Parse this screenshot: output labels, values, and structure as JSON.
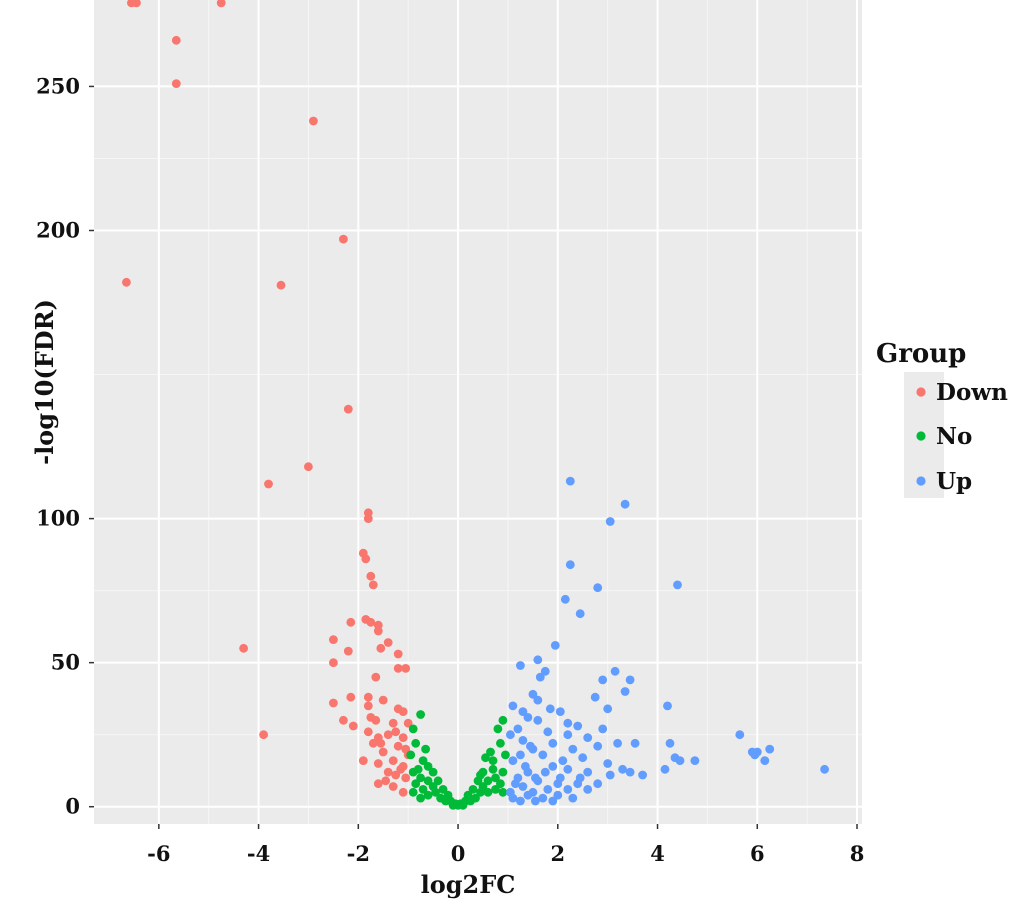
{
  "chart_data": {
    "type": "scatter",
    "title": "",
    "xlabel": "log2FC",
    "ylabel": "-log10(FDR)",
    "xlim": [
      -7.3,
      8.1
    ],
    "ylim": [
      -6,
      280
    ],
    "x_ticks": [
      -6,
      -4,
      -2,
      0,
      2,
      4,
      6,
      8
    ],
    "y_ticks": [
      0,
      50,
      100,
      200,
      250
    ],
    "grid": true,
    "legend": {
      "title": "Group",
      "placement": "right"
    },
    "series": [
      {
        "name": "Down",
        "color": "#F8766D",
        "points": [
          [
            -6.55,
            279
          ],
          [
            -6.45,
            279
          ],
          [
            -4.75,
            279
          ],
          [
            -5.65,
            266
          ],
          [
            -5.65,
            251
          ],
          [
            -2.9,
            238
          ],
          [
            -2.3,
            197
          ],
          [
            -6.65,
            182
          ],
          [
            -3.55,
            181
          ],
          [
            -2.2,
            138
          ],
          [
            -3,
            118
          ],
          [
            -3.8,
            112
          ],
          [
            -1.8,
            102
          ],
          [
            -1.8,
            100
          ],
          [
            -1.9,
            88
          ],
          [
            -1.85,
            86
          ],
          [
            -1.75,
            80
          ],
          [
            -1.7,
            77
          ],
          [
            -1.85,
            65
          ],
          [
            -1.75,
            64
          ],
          [
            -2.15,
            64
          ],
          [
            -1.6,
            63
          ],
          [
            -1.6,
            61
          ],
          [
            -2.5,
            58
          ],
          [
            -1.4,
            57
          ],
          [
            -2.2,
            54
          ],
          [
            -1.55,
            55
          ],
          [
            -4.3,
            55
          ],
          [
            -1.2,
            53
          ],
          [
            -2.5,
            50
          ],
          [
            -1.2,
            48
          ],
          [
            -1.05,
            48
          ],
          [
            -1.65,
            45
          ],
          [
            -2.15,
            38
          ],
          [
            -1.8,
            38
          ],
          [
            -1.5,
            37
          ],
          [
            -2.5,
            36
          ],
          [
            -1.8,
            35
          ],
          [
            -1.2,
            34
          ],
          [
            -1.1,
            33
          ],
          [
            -1.75,
            31
          ],
          [
            -1.65,
            30
          ],
          [
            -2.3,
            30
          ],
          [
            -2.1,
            28
          ],
          [
            -1.3,
            29
          ],
          [
            -1.0,
            29
          ],
          [
            -1.8,
            26
          ],
          [
            -1.6,
            24
          ],
          [
            -1.4,
            25
          ],
          [
            -1.1,
            24
          ],
          [
            -3.9,
            25
          ],
          [
            -1.7,
            22
          ],
          [
            -1.2,
            21
          ],
          [
            -1.5,
            19
          ],
          [
            -1.0,
            18
          ],
          [
            -1.9,
            16
          ],
          [
            -1.3,
            16
          ],
          [
            -1.6,
            15
          ],
          [
            -1.1,
            14
          ],
          [
            -1.4,
            12
          ],
          [
            -1.25,
            11
          ],
          [
            -1.05,
            10
          ],
          [
            -1.6,
            8
          ],
          [
            -1.3,
            7
          ],
          [
            -1.1,
            5
          ],
          [
            -1.55,
            22
          ],
          [
            -1.25,
            26
          ],
          [
            -1.05,
            20
          ],
          [
            -1.45,
            9
          ],
          [
            -1.15,
            13
          ]
        ]
      },
      {
        "name": "No",
        "color": "#00BA38",
        "points": [
          [
            -0.75,
            32
          ],
          [
            -0.9,
            27
          ],
          [
            -0.85,
            22
          ],
          [
            -0.95,
            18
          ],
          [
            -0.7,
            16
          ],
          [
            -0.8,
            13
          ],
          [
            -0.6,
            14
          ],
          [
            -0.9,
            12
          ],
          [
            -0.5,
            12
          ],
          [
            -0.75,
            10
          ],
          [
            -0.6,
            9
          ],
          [
            -0.85,
            8
          ],
          [
            -0.4,
            9
          ],
          [
            -0.5,
            7
          ],
          [
            -0.7,
            6
          ],
          [
            -0.3,
            6
          ],
          [
            -0.9,
            5
          ],
          [
            -0.45,
            5
          ],
          [
            -0.6,
            4
          ],
          [
            -0.2,
            4
          ],
          [
            -0.35,
            3
          ],
          [
            -0.75,
            3
          ],
          [
            -0.15,
            2
          ],
          [
            -0.25,
            2
          ],
          [
            -0.05,
            1
          ],
          [
            0.0,
            0.5
          ],
          [
            0.05,
            1
          ],
          [
            0.15,
            2
          ],
          [
            0.25,
            2
          ],
          [
            0.35,
            3
          ],
          [
            0.2,
            4
          ],
          [
            0.45,
            5
          ],
          [
            0.3,
            6
          ],
          [
            0.5,
            7
          ],
          [
            0.4,
            9
          ],
          [
            0.6,
            9
          ],
          [
            0.5,
            12
          ],
          [
            0.75,
            10
          ],
          [
            0.7,
            13
          ],
          [
            0.85,
            8
          ],
          [
            0.9,
            12
          ],
          [
            0.7,
            16
          ],
          [
            0.85,
            22
          ],
          [
            0.95,
            18
          ],
          [
            0.8,
            27
          ],
          [
            0.9,
            30
          ],
          [
            0.6,
            5
          ],
          [
            0.75,
            6
          ],
          [
            0.9,
            5
          ],
          [
            0.1,
            0.5
          ],
          [
            -0.1,
            0.5
          ],
          [
            0.65,
            19
          ],
          [
            0.55,
            17
          ],
          [
            -0.65,
            20
          ],
          [
            0.45,
            11
          ]
        ]
      },
      {
        "name": "Up",
        "color": "#619CFF",
        "points": [
          [
            2.25,
            113
          ],
          [
            3.35,
            105
          ],
          [
            3.05,
            99
          ],
          [
            2.25,
            84
          ],
          [
            4.4,
            77
          ],
          [
            2.8,
            76
          ],
          [
            2.15,
            72
          ],
          [
            2.45,
            67
          ],
          [
            1.95,
            56
          ],
          [
            1.6,
            51
          ],
          [
            1.25,
            49
          ],
          [
            1.75,
            47
          ],
          [
            3.15,
            47
          ],
          [
            1.65,
            45
          ],
          [
            2.9,
            44
          ],
          [
            3.45,
            44
          ],
          [
            3.35,
            40
          ],
          [
            1.5,
            39
          ],
          [
            2.75,
            38
          ],
          [
            1.6,
            37
          ],
          [
            1.1,
            35
          ],
          [
            1.3,
            33
          ],
          [
            1.85,
            34
          ],
          [
            2.05,
            33
          ],
          [
            4.2,
            35
          ],
          [
            3.0,
            34
          ],
          [
            1.4,
            31
          ],
          [
            1.6,
            30
          ],
          [
            2.2,
            29
          ],
          [
            2.4,
            28
          ],
          [
            1.2,
            27
          ],
          [
            2.9,
            27
          ],
          [
            1.8,
            26
          ],
          [
            2.2,
            25
          ],
          [
            1.05,
            25
          ],
          [
            5.65,
            25
          ],
          [
            2.6,
            24
          ],
          [
            1.3,
            23
          ],
          [
            1.9,
            22
          ],
          [
            3.2,
            22
          ],
          [
            3.55,
            22
          ],
          [
            4.25,
            22
          ],
          [
            2.8,
            21
          ],
          [
            6.25,
            20
          ],
          [
            5.9,
            19
          ],
          [
            6.0,
            19
          ],
          [
            5.95,
            18
          ],
          [
            1.5,
            20
          ],
          [
            2.3,
            20
          ],
          [
            1.7,
            18
          ],
          [
            4.35,
            17
          ],
          [
            4.45,
            16
          ],
          [
            4.75,
            16
          ],
          [
            6.15,
            16
          ],
          [
            2.5,
            17
          ],
          [
            1.1,
            16
          ],
          [
            3.0,
            15
          ],
          [
            1.9,
            14
          ],
          [
            2.2,
            13
          ],
          [
            4.15,
            13
          ],
          [
            7.35,
            13
          ],
          [
            3.3,
            13
          ],
          [
            2.6,
            12
          ],
          [
            1.4,
            12
          ],
          [
            3.45,
            12
          ],
          [
            1.2,
            10
          ],
          [
            3.05,
            11
          ],
          [
            3.7,
            11
          ],
          [
            1.6,
            9
          ],
          [
            2.0,
            8
          ],
          [
            2.4,
            8
          ],
          [
            2.8,
            8
          ],
          [
            1.3,
            7
          ],
          [
            1.8,
            6
          ],
          [
            2.2,
            6
          ],
          [
            1.05,
            5
          ],
          [
            1.5,
            5
          ],
          [
            2.6,
            6
          ],
          [
            1.1,
            3
          ],
          [
            1.4,
            4
          ],
          [
            1.7,
            3
          ],
          [
            2.0,
            4
          ],
          [
            1.25,
            2
          ],
          [
            1.55,
            2
          ],
          [
            1.9,
            2
          ],
          [
            2.3,
            3
          ],
          [
            1.15,
            8
          ],
          [
            1.35,
            14
          ],
          [
            1.55,
            10
          ],
          [
            1.75,
            12
          ],
          [
            2.05,
            10
          ],
          [
            2.45,
            10
          ],
          [
            1.25,
            18
          ],
          [
            1.45,
            21
          ],
          [
            2.1,
            16
          ]
        ]
      }
    ]
  }
}
